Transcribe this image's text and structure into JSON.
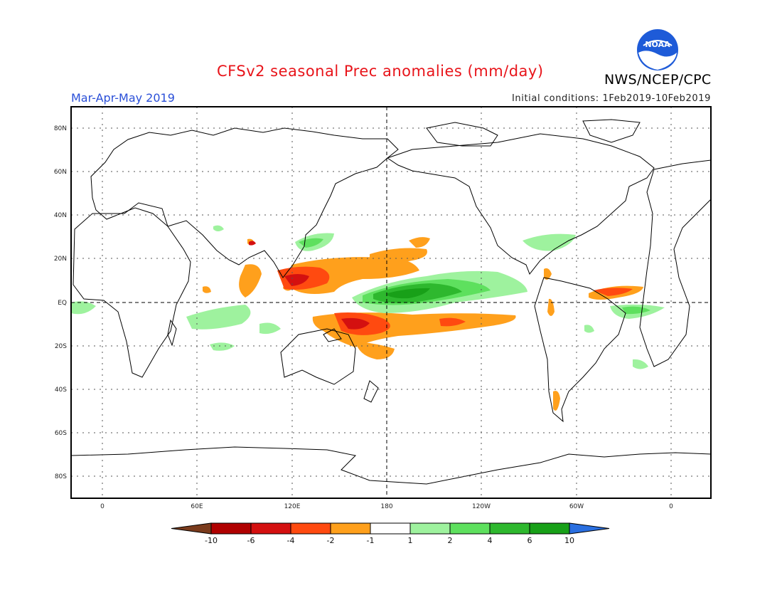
{
  "title": "CFSv2 seasonal Prec anomalies (mm/day)",
  "period": "Mar-Apr-May 2019",
  "initial_conditions": "Initial conditions: 1Feb2019-10Feb2019",
  "agency": "NWS/NCEP/CPC",
  "logo_text": "NOAA",
  "latitude_labels": [
    "80N",
    "60N",
    "40N",
    "20N",
    "EQ",
    "20S",
    "40S",
    "60S",
    "80S"
  ],
  "longitude_labels": [
    "0",
    "60E",
    "120E",
    "180",
    "120W",
    "60W",
    "0"
  ],
  "colorbar": {
    "labels": [
      "-10",
      "-6",
      "-4",
      "-2",
      "-1",
      "1",
      "2",
      "4",
      "6",
      "10"
    ],
    "colors": [
      "#7a3b1c",
      "#b00000",
      "#d41010",
      "#ff4a10",
      "#ffa01c",
      "#ffffff",
      "#9ef29e",
      "#5ee05e",
      "#2eb82e",
      "#18a018",
      "#2a6fe0"
    ]
  }
}
